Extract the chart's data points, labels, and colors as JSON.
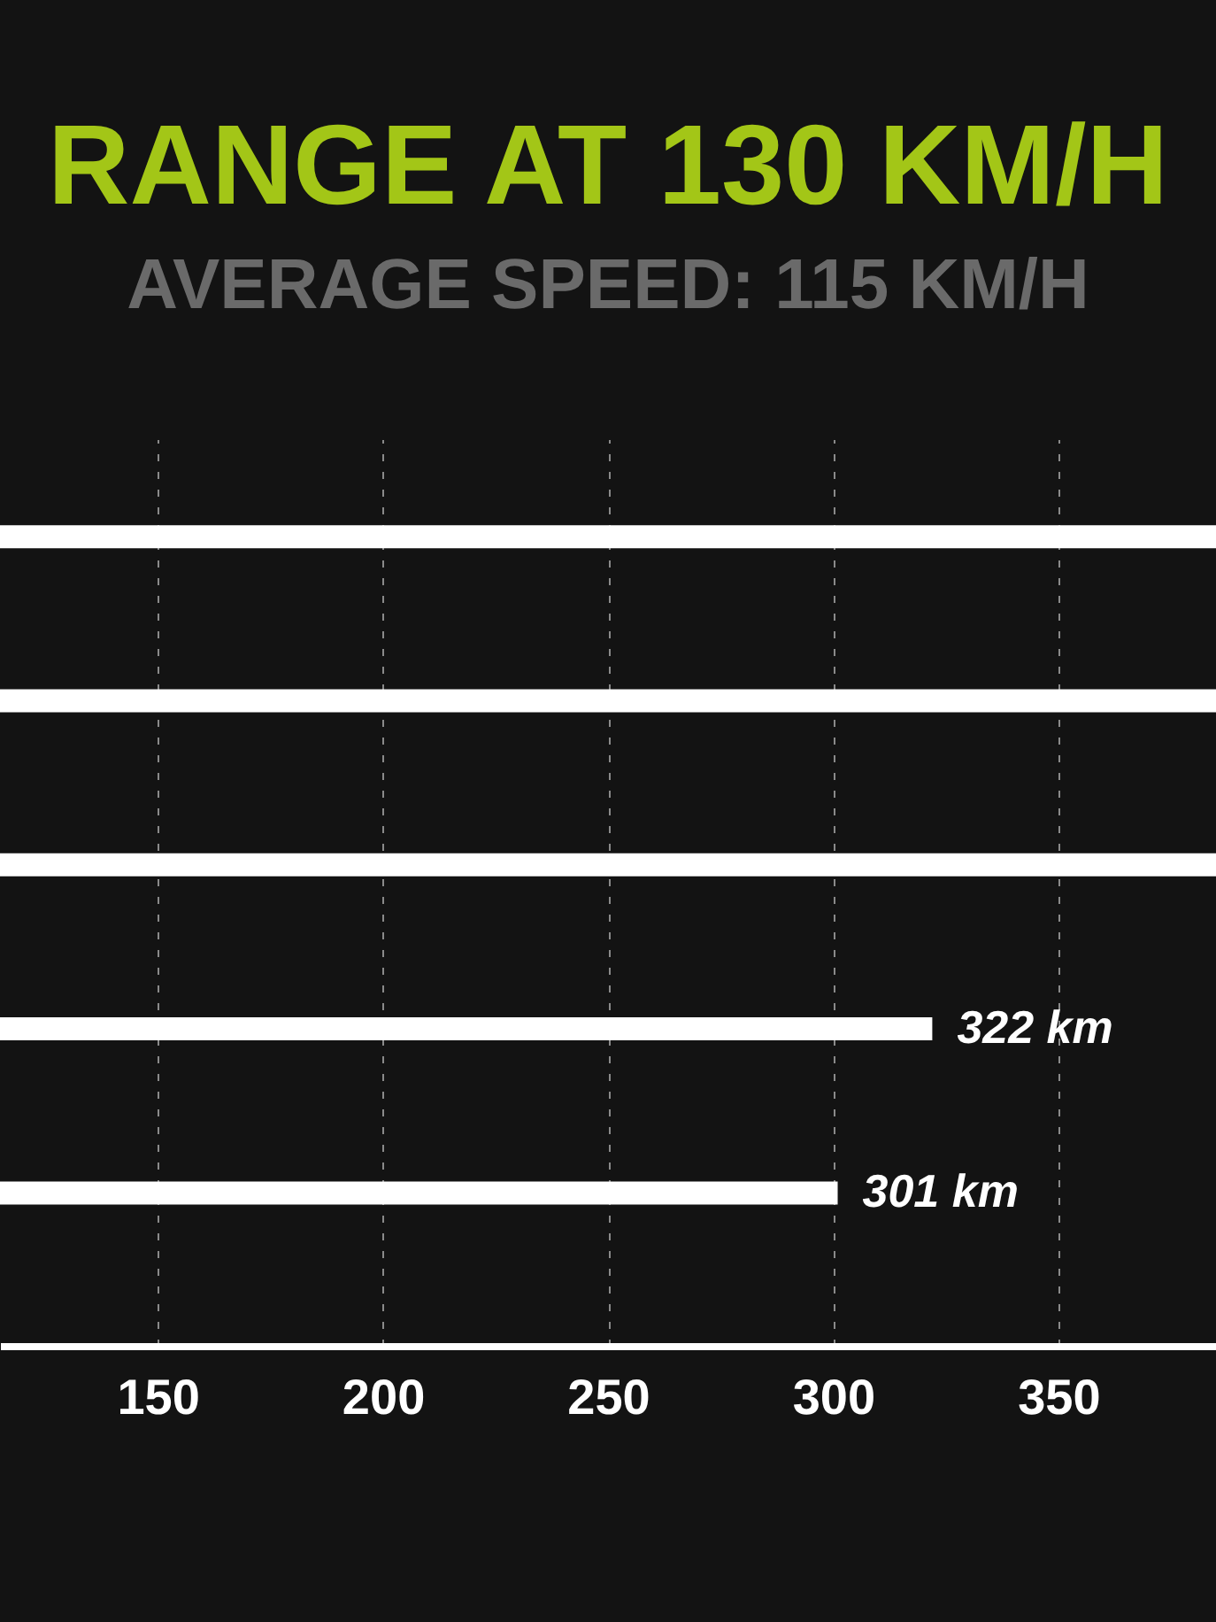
{
  "chart_data": {
    "type": "bar",
    "orientation": "horizontal",
    "title": "RANGE AT 130 KM/H",
    "subtitle": "AVERAGE SPEED: 115 KM/H",
    "categories": [
      null,
      null,
      null,
      null,
      null
    ],
    "values": [
      385,
      385,
      385,
      322,
      301
    ],
    "color": "#ffffff",
    "value_labels": [
      null,
      null,
      null,
      "322 km",
      "301 km"
    ],
    "xlim": [
      115,
      385
    ],
    "xticks": [
      150,
      200,
      250,
      300,
      350
    ],
    "grid": "x"
  }
}
